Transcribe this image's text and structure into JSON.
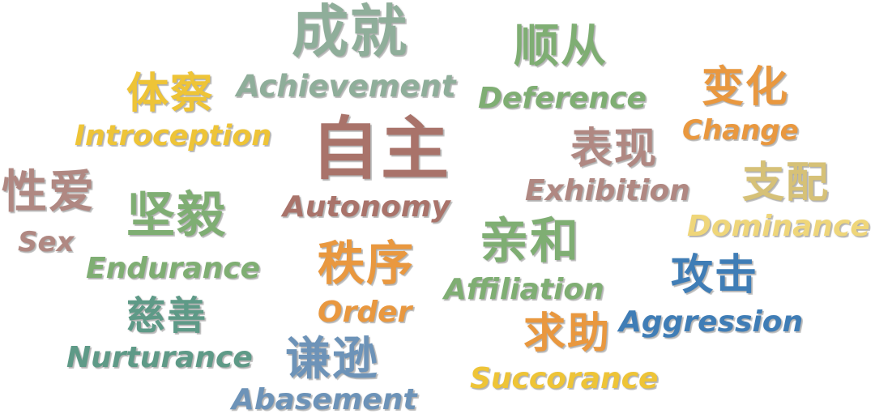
{
  "words": [
    {
      "key": "achievement_cn",
      "text": "成就"
    },
    {
      "key": "achievement_en",
      "text": "Achievement"
    },
    {
      "key": "deference_cn",
      "text": "顺从"
    },
    {
      "key": "deference_en",
      "text": "Deference"
    },
    {
      "key": "introception_cn",
      "text": "体察"
    },
    {
      "key": "introception_en",
      "text": "Introception"
    },
    {
      "key": "change_cn",
      "text": "变化"
    },
    {
      "key": "change_en",
      "text": "Change"
    },
    {
      "key": "autonomy_cn",
      "text": "自主"
    },
    {
      "key": "autonomy_en",
      "text": "Autonomy"
    },
    {
      "key": "exhibition_cn",
      "text": "表现"
    },
    {
      "key": "exhibition_en",
      "text": "Exhibition"
    },
    {
      "key": "sex_cn",
      "text": "性爱"
    },
    {
      "key": "sex_en",
      "text": "Sex"
    },
    {
      "key": "endurance_cn",
      "text": "坚毅"
    },
    {
      "key": "endurance_en",
      "text": "Endurance"
    },
    {
      "key": "dominance_cn",
      "text": "支配"
    },
    {
      "key": "dominance_en",
      "text": "Dominance"
    },
    {
      "key": "affiliation_cn",
      "text": "亲和"
    },
    {
      "key": "affiliation_en",
      "text": "Affiliation"
    },
    {
      "key": "order_cn",
      "text": "秩序"
    },
    {
      "key": "order_en",
      "text": "Order"
    },
    {
      "key": "aggression_cn",
      "text": "攻击"
    },
    {
      "key": "aggression_en",
      "text": "Aggression"
    },
    {
      "key": "nurturance_cn",
      "text": "慈善"
    },
    {
      "key": "nurturance_en",
      "text": "Nurturance"
    },
    {
      "key": "succorance_cn",
      "text": "求助"
    },
    {
      "key": "succorance_en",
      "text": "Succorance"
    },
    {
      "key": "abasement_cn",
      "text": "谦逊"
    },
    {
      "key": "abasement_en",
      "text": "Abasement"
    }
  ],
  "colors": {
    "green": "#7fae73",
    "sage": "#8fae9a",
    "teal": "#5e9a87",
    "yellow": "#eec437",
    "orange": "#e9983f",
    "brown": "#a9736a",
    "mauve": "#b08882",
    "khaki": "#d6c177",
    "lemon": "#efd67a",
    "blue": "#3f7db6",
    "steel": "#6d93b8"
  }
}
